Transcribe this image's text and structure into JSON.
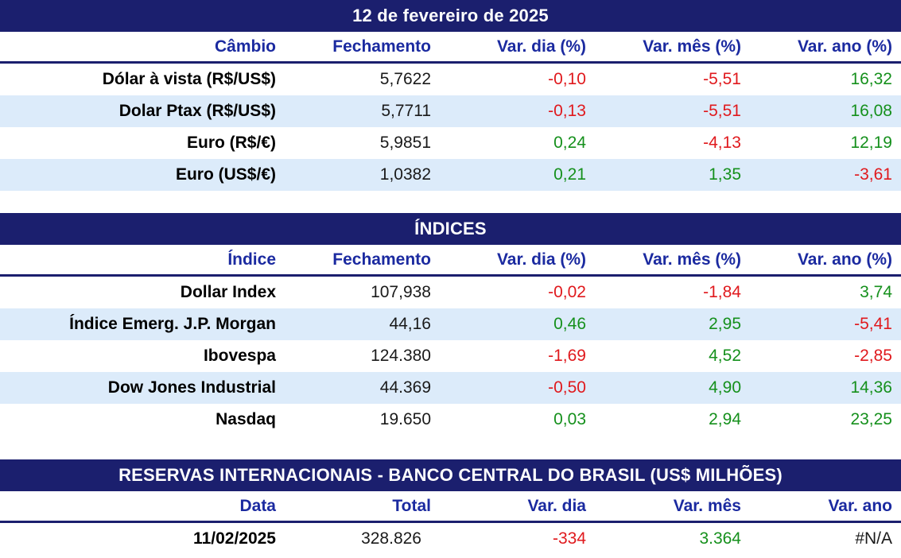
{
  "cambio": {
    "title": "12 de fevereiro de 2025",
    "headers": [
      "Câmbio",
      "Fechamento",
      "Var. dia (%)",
      "Var. mês (%)",
      "Var. ano (%)"
    ],
    "rows": [
      {
        "name": "Dólar à vista (R$/US$)",
        "close": "5,7622",
        "day": "-0,10",
        "month": "-5,51",
        "year": "16,32"
      },
      {
        "name": "Dolar Ptax (R$/US$)",
        "close": "5,7711",
        "day": "-0,13",
        "month": "-5,51",
        "year": "16,08"
      },
      {
        "name": "Euro (R$/€)",
        "close": "5,9851",
        "day": "0,24",
        "month": "-4,13",
        "year": "12,19"
      },
      {
        "name": "Euro (US$/€)",
        "close": "1,0382",
        "day": "0,21",
        "month": "1,35",
        "year": "-3,61"
      }
    ]
  },
  "indices": {
    "title": "ÍNDICES",
    "headers": [
      "Índice",
      "Fechamento",
      "Var. dia (%)",
      "Var. mês (%)",
      "Var. ano (%)"
    ],
    "rows": [
      {
        "name": "Dollar Index",
        "close": "107,938",
        "day": "-0,02",
        "month": "-1,84",
        "year": "3,74"
      },
      {
        "name": "Índice Emerg. J.P. Morgan",
        "close": "44,16",
        "day": "0,46",
        "month": "2,95",
        "year": "-5,41"
      },
      {
        "name": "Ibovespa",
        "close": "124.380",
        "day": "-1,69",
        "month": "4,52",
        "year": "-2,85"
      },
      {
        "name": "Dow Jones Industrial",
        "close": "44.369",
        "day": "-0,50",
        "month": "4,90",
        "year": "14,36"
      },
      {
        "name": "Nasdaq",
        "close": "19.650",
        "day": "0,03",
        "month": "2,94",
        "year": "23,25"
      }
    ]
  },
  "reservas": {
    "title": "RESERVAS INTERNACIONAIS - BANCO CENTRAL DO BRASIL (US$ MILHÕES)",
    "headers": [
      "Data",
      "Total",
      "Var. dia",
      "Var. mês",
      "Var. ano"
    ],
    "rows": [
      {
        "name": "11/02/2025",
        "close": "328.826",
        "day": "-334",
        "month": "3.364",
        "year": "#N/A"
      }
    ]
  },
  "colors": {
    "banner": "#1b1f6e",
    "header_text": "#1b2aa0",
    "row_shade": "#dcebfa",
    "negative": "#e0191d",
    "positive": "#15901c"
  }
}
